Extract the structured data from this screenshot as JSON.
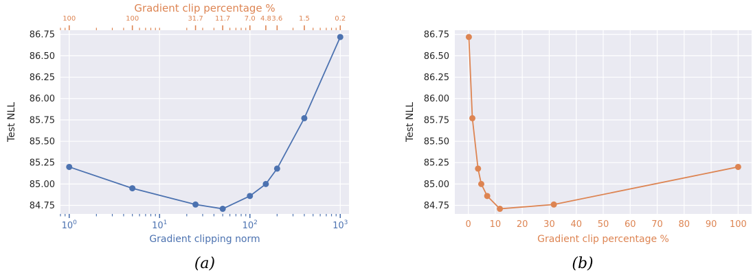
{
  "chart_data": [
    {
      "type": "line",
      "panel_caption": "(a)",
      "xlabel": "Gradient clipping norm",
      "ylabel": "Test NLL",
      "x_scale": "log",
      "xlim": [
        0.8,
        1250
      ],
      "ylim": [
        84.65,
        86.8
      ],
      "grid": true,
      "x_ticks": [
        {
          "value": 1,
          "base": "10",
          "exp": "0"
        },
        {
          "value": 10,
          "base": "10",
          "exp": "1"
        },
        {
          "value": 100,
          "base": "10",
          "exp": "2"
        },
        {
          "value": 1000,
          "base": "10",
          "exp": "3"
        }
      ],
      "y_ticks": [
        84.75,
        85.0,
        85.25,
        85.5,
        85.75,
        86.0,
        86.25,
        86.5,
        86.75
      ],
      "y_tick_labels": [
        "84.75",
        "85.00",
        "85.25",
        "85.50",
        "85.75",
        "86.00",
        "86.25",
        "86.50",
        "86.75"
      ],
      "series": [
        {
          "x": [
            1,
            5,
            25,
            50,
            100,
            150,
            200,
            400,
            1000
          ],
          "y": [
            85.2,
            84.95,
            84.76,
            84.71,
            84.86,
            85.0,
            85.18,
            85.77,
            86.72
          ]
        }
      ],
      "top_axis": {
        "label": "Gradient clip percentage %",
        "ticks": [
          {
            "at_x": 1,
            "label": "100"
          },
          {
            "at_x": 5,
            "label": "100"
          },
          {
            "at_x": 25,
            "label": "31.7"
          },
          {
            "at_x": 50,
            "label": "11.7"
          },
          {
            "at_x": 100,
            "label": "7.0"
          },
          {
            "at_x": 150,
            "label": "4.8"
          },
          {
            "at_x": 200,
            "label": "3.6"
          },
          {
            "at_x": 400,
            "label": "1.5"
          },
          {
            "at_x": 1000,
            "label": "0.2"
          }
        ]
      },
      "colors": {
        "line": "#4c72b0",
        "top_axis": "#dd8452",
        "bottom_axis": "#4c72b0"
      }
    },
    {
      "type": "line",
      "panel_caption": "(b)",
      "xlabel": "Gradient clip percentage %",
      "ylabel": "Test NLL",
      "xlim": [
        -5,
        105
      ],
      "ylim": [
        84.65,
        86.8
      ],
      "grid": true,
      "x_ticks": [
        0,
        10,
        20,
        30,
        40,
        50,
        60,
        70,
        80,
        90,
        100
      ],
      "y_ticks": [
        84.75,
        85.0,
        85.25,
        85.5,
        85.75,
        86.0,
        86.25,
        86.5,
        86.75
      ],
      "y_tick_labels": [
        "84.75",
        "85.00",
        "85.25",
        "85.50",
        "85.75",
        "86.00",
        "86.25",
        "86.50",
        "86.75"
      ],
      "series": [
        {
          "x": [
            0.2,
            1.5,
            3.6,
            4.8,
            7.0,
            11.7,
            31.7,
            100
          ],
          "y": [
            86.72,
            85.77,
            85.18,
            85.0,
            84.86,
            84.71,
            84.76,
            85.2
          ]
        }
      ],
      "colors": {
        "line": "#dd8452",
        "x_axis": "#dd8452"
      }
    }
  ]
}
